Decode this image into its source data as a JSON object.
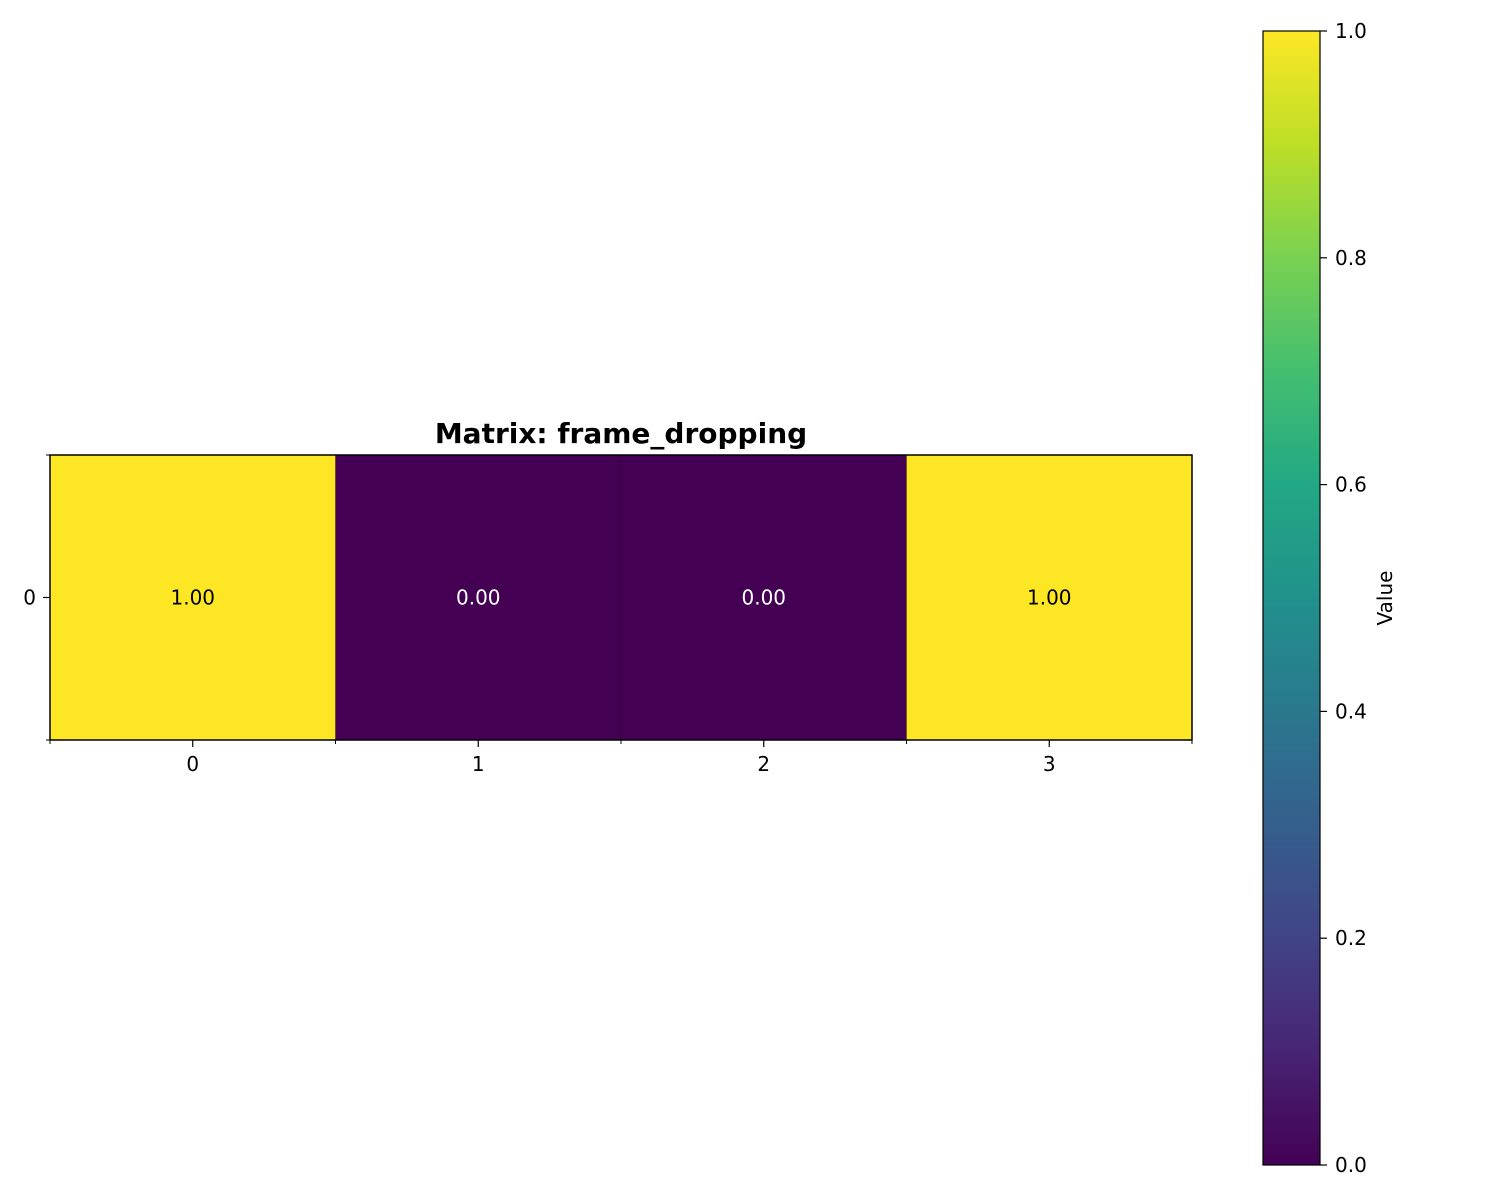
{
  "chart_data": {
    "type": "heatmap",
    "title": "Matrix: frame_dropping",
    "rows": [
      "0"
    ],
    "columns": [
      "0",
      "1",
      "2",
      "3"
    ],
    "values": [
      [
        1.0,
        0.0,
        0.0,
        1.0
      ]
    ],
    "cell_labels": [
      [
        "1.00",
        "0.00",
        "0.00",
        "1.00"
      ]
    ],
    "colormap": "viridis",
    "vmin": 0.0,
    "vmax": 1.0,
    "colorbar": {
      "label": "Value",
      "ticks": [
        "0.0",
        "0.2",
        "0.4",
        "0.6",
        "0.8",
        "1.0"
      ]
    },
    "colors": {
      "high": "#fde725",
      "low": "#440154",
      "label_on_high": "#000000",
      "label_on_low": "#ffffff"
    }
  }
}
